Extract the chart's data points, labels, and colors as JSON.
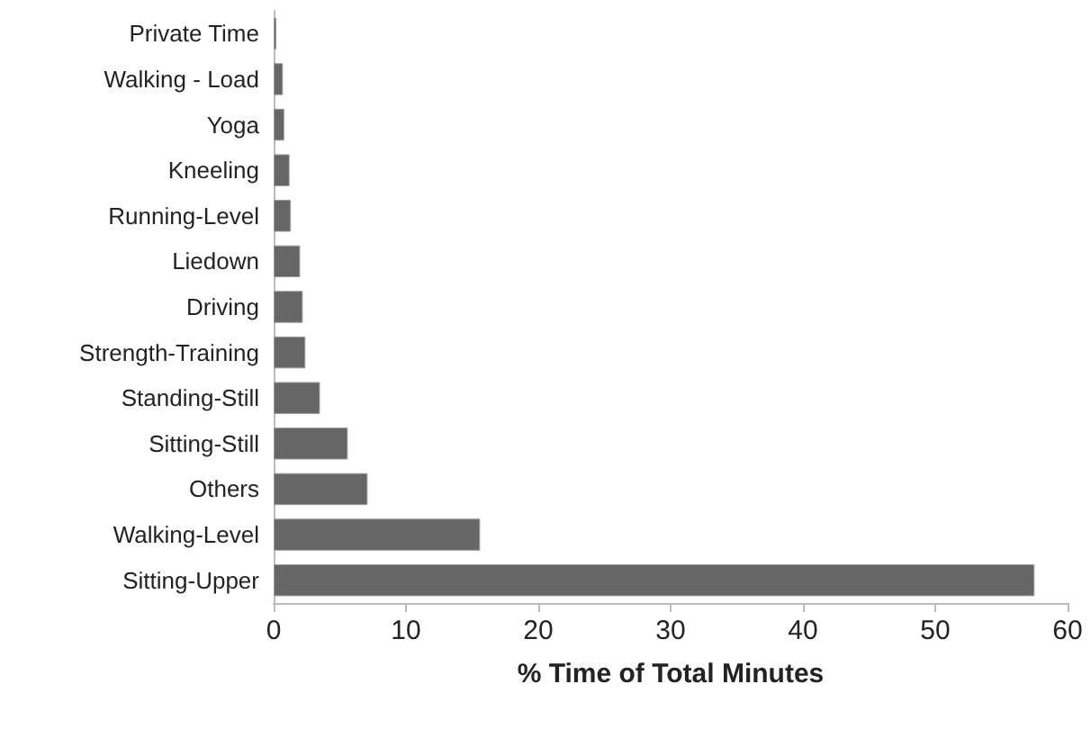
{
  "chart_data": {
    "type": "bar",
    "orientation": "horizontal",
    "xlabel": "% Time of Total Minutes",
    "categories": [
      "Private Time",
      "Walking - Load",
      "Yoga",
      "Kneeling",
      "Running-Level",
      "Liedown",
      "Driving",
      "Strength-Training",
      "Standing-Still",
      "Sitting-Still",
      "Others",
      "Walking-Level",
      "Sitting-Upper"
    ],
    "values": [
      0.2,
      0.7,
      0.8,
      1.2,
      1.3,
      2.0,
      2.2,
      2.4,
      3.5,
      5.6,
      7.1,
      15.6,
      57.5
    ],
    "color": "#666666",
    "xlim": [
      0,
      60
    ],
    "xticks": [
      0,
      10,
      20,
      30,
      40,
      50,
      60
    ]
  }
}
